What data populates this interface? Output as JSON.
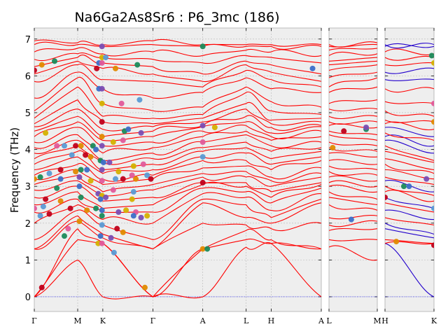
{
  "chart_data": {
    "type": "line",
    "title": "Na6Ga2As8Sr6 : P6_3mc (186)",
    "ylabel": "Frequency (THz)",
    "xlabel": "",
    "ylim": [
      -0.4,
      7.3
    ],
    "yticks": [
      0,
      1,
      2,
      3,
      4,
      5,
      6,
      7
    ],
    "grid": true,
    "colors": {
      "bands": "#ff0000",
      "bands_alt": "#2200cc",
      "zero_line": "#0000ff",
      "panel": "#eeeeee"
    },
    "panels": [
      {
        "labels": [
          "Γ",
          "M",
          "K",
          "Γ",
          "A",
          "L",
          "H",
          "A"
        ],
        "positions": [
          0,
          0.577,
          0.911,
          1.577,
          2.24,
          2.817,
          3.15,
          3.816
        ],
        "color": "red"
      },
      {
        "labels": [
          "L",
          "M"
        ],
        "positions": [
          0,
          0.65
        ],
        "color": "red"
      },
      {
        "labels": [
          "H",
          "K"
        ],
        "positions": [
          0,
          0.65
        ],
        "color": "mixed"
      }
    ],
    "corner_labels": {
      "panel1_right": "A",
      "panel2_left": "L",
      "panel2_right": "M",
      "panel3_left": "H",
      "panel3_right": "K"
    },
    "band_frequencies_at_gamma": [
      0,
      0,
      0,
      1.3,
      1.3,
      1.55,
      2.0,
      2.3,
      2.5,
      2.7,
      2.9,
      3.05,
      3.2,
      3.3,
      3.45,
      3.6,
      3.75,
      3.9,
      4.05,
      4.2,
      4.35,
      4.5,
      4.62,
      4.7,
      4.85,
      5.05,
      5.4,
      5.85,
      6.05,
      6.25,
      6.45,
      6.65,
      6.85,
      6.95
    ],
    "band_frequencies_at_A": [
      0,
      1.3,
      1.3,
      2.0,
      2.55,
      2.65,
      2.8,
      2.95,
      3.05,
      3.1,
      3.25,
      3.35,
      3.5,
      3.7,
      3.8,
      3.95,
      4.05,
      4.2,
      4.35,
      4.5,
      4.62,
      4.65,
      4.75,
      4.85,
      4.95,
      5.15,
      5.55,
      5.7,
      5.85,
      6.05,
      6.35,
      6.55,
      6.8,
      6.85
    ],
    "band_frequencies_at_K": [
      0,
      1.45,
      1.45,
      1.6,
      1.7,
      1.95,
      2.1,
      2.3,
      2.4,
      2.6,
      2.75,
      2.85,
      3.05,
      3.2,
      3.35,
      3.45,
      3.65,
      3.7,
      3.9,
      4.1,
      4.25,
      4.35,
      4.55,
      4.75,
      4.9,
      5.25,
      5.65,
      5.9,
      6.2,
      6.35,
      6.5,
      6.6,
      6.8,
      6.85
    ],
    "band_frequencies_at_M": [
      1.0,
      1.55,
      1.85,
      2.05,
      2.2,
      2.35,
      2.5,
      2.65,
      2.85,
      3.0,
      3.15,
      3.3,
      3.45,
      3.6,
      3.8,
      3.95,
      4.1,
      4.25,
      4.4,
      4.6,
      4.75,
      4.9,
      5.1,
      5.35,
      5.7,
      5.95,
      6.1,
      6.3,
      6.4,
      6.5,
      6.6,
      6.75,
      6.85,
      6.9
    ],
    "band_frequencies_at_L": [
      1.35,
      1.55,
      1.8,
      1.95,
      2.15,
      2.5,
      2.7,
      2.85,
      3.0,
      3.1,
      3.25,
      3.4,
      3.55,
      3.7,
      3.9,
      4.05,
      4.2,
      4.4,
      4.5,
      4.65,
      4.75,
      4.9,
      5.1,
      5.25,
      5.55,
      5.7,
      5.95,
      6.15,
      6.3,
      6.4,
      6.55,
      6.7,
      6.8,
      6.85
    ],
    "band_frequencies_at_H": [
      1.45,
      1.45,
      1.55,
      1.85,
      2.0,
      2.15,
      2.35,
      2.55,
      2.7,
      2.85,
      3.0,
      3.15,
      3.25,
      3.45,
      3.6,
      3.75,
      3.95,
      4.1,
      4.25,
      4.35,
      4.45,
      4.6,
      4.7,
      4.8,
      5.05,
      5.3,
      5.65,
      5.9,
      6.1,
      6.3,
      6.5,
      6.65,
      6.8,
      6.85
    ],
    "marker_colors": [
      "#c0001a",
      "#e08a00",
      "#1a8a5a",
      "#3b6ec8",
      "#7a4db3",
      "#d4b000",
      "#e05a9a",
      "#5a9ad4"
    ],
    "markers": [
      {
        "x": 0.0,
        "y": 6.15
      },
      {
        "x": 0.1,
        "y": 6.3
      },
      {
        "x": 0.27,
        "y": 6.4
      },
      {
        "x": 0.86,
        "y": 6.35
      },
      {
        "x": 0.9,
        "y": 6.8
      },
      {
        "x": 0.9,
        "y": 6.5
      },
      {
        "x": 0.9,
        "y": 6.35
      },
      {
        "x": 0.95,
        "y": 6.5
      },
      {
        "x": 0.83,
        "y": 6.2
      },
      {
        "x": 1.08,
        "y": 6.2
      },
      {
        "x": 1.37,
        "y": 6.3
      },
      {
        "x": 0.86,
        "y": 5.65
      },
      {
        "x": 0.9,
        "y": 5.65
      },
      {
        "x": 0.9,
        "y": 5.25
      },
      {
        "x": 1.16,
        "y": 5.25
      },
      {
        "x": 1.4,
        "y": 5.35
      },
      {
        "x": 0.9,
        "y": 4.75
      },
      {
        "x": 0.9,
        "y": 4.35
      },
      {
        "x": 1.2,
        "y": 4.5
      },
      {
        "x": 1.25,
        "y": 4.55
      },
      {
        "x": 1.42,
        "y": 4.45
      },
      {
        "x": 0.15,
        "y": 4.45
      },
      {
        "x": 0.3,
        "y": 4.1
      },
      {
        "x": 0.4,
        "y": 4.1
      },
      {
        "x": 0.55,
        "y": 4.1
      },
      {
        "x": 0.62,
        "y": 4.1
      },
      {
        "x": 0.78,
        "y": 4.1
      },
      {
        "x": 0.82,
        "y": 4.0
      },
      {
        "x": 0.9,
        "y": 4.1
      },
      {
        "x": 1.05,
        "y": 4.2
      },
      {
        "x": 1.18,
        "y": 4.25
      },
      {
        "x": 0.5,
        "y": 3.85
      },
      {
        "x": 0.68,
        "y": 3.85
      },
      {
        "x": 0.75,
        "y": 3.8
      },
      {
        "x": 0.88,
        "y": 3.7
      },
      {
        "x": 0.92,
        "y": 3.65
      },
      {
        "x": 1.0,
        "y": 3.65
      },
      {
        "x": 1.32,
        "y": 3.55
      },
      {
        "x": 1.45,
        "y": 3.6
      },
      {
        "x": 0.2,
        "y": 3.35
      },
      {
        "x": 0.35,
        "y": 3.45
      },
      {
        "x": 0.55,
        "y": 3.4
      },
      {
        "x": 0.62,
        "y": 3.45
      },
      {
        "x": 0.7,
        "y": 3.45
      },
      {
        "x": 0.9,
        "y": 3.45
      },
      {
        "x": 1.12,
        "y": 3.4
      },
      {
        "x": 1.3,
        "y": 3.3
      },
      {
        "x": 1.5,
        "y": 3.3
      },
      {
        "x": 1.55,
        "y": 3.2
      },
      {
        "x": 0.0,
        "y": 3.2
      },
      {
        "x": 0.08,
        "y": 3.25
      },
      {
        "x": 0.35,
        "y": 3.2
      },
      {
        "x": 0.6,
        "y": 3.25
      },
      {
        "x": 0.75,
        "y": 3.15
      },
      {
        "x": 0.9,
        "y": 3.15
      },
      {
        "x": 1.08,
        "y": 3.2
      },
      {
        "x": 1.18,
        "y": 3.2
      },
      {
        "x": 1.35,
        "y": 3.2
      },
      {
        "x": 0.3,
        "y": 2.95
      },
      {
        "x": 0.6,
        "y": 3.0
      },
      {
        "x": 0.85,
        "y": 2.8
      },
      {
        "x": 0.9,
        "y": 2.75
      },
      {
        "x": 1.05,
        "y": 2.9
      },
      {
        "x": 1.32,
        "y": 2.85
      },
      {
        "x": 0.15,
        "y": 2.65
      },
      {
        "x": 0.35,
        "y": 2.6
      },
      {
        "x": 0.62,
        "y": 2.7
      },
      {
        "x": 0.88,
        "y": 2.65
      },
      {
        "x": 0.95,
        "y": 2.7
      },
      {
        "x": 1.3,
        "y": 2.65
      },
      {
        "x": 0.0,
        "y": 2.4
      },
      {
        "x": 0.12,
        "y": 2.45
      },
      {
        "x": 0.48,
        "y": 2.4
      },
      {
        "x": 0.7,
        "y": 2.35
      },
      {
        "x": 0.82,
        "y": 2.4
      },
      {
        "x": 0.9,
        "y": 2.35
      },
      {
        "x": 1.12,
        "y": 2.3
      },
      {
        "x": 1.22,
        "y": 2.35
      },
      {
        "x": 1.35,
        "y": 2.3
      },
      {
        "x": 0.08,
        "y": 2.2
      },
      {
        "x": 0.2,
        "y": 2.25
      },
      {
        "x": 0.6,
        "y": 2.05
      },
      {
        "x": 0.9,
        "y": 2.2
      },
      {
        "x": 1.32,
        "y": 2.2
      },
      {
        "x": 1.42,
        "y": 2.15
      },
      {
        "x": 1.5,
        "y": 2.2
      },
      {
        "x": 0.45,
        "y": 1.85
      },
      {
        "x": 0.9,
        "y": 1.95
      },
      {
        "x": 1.1,
        "y": 1.85
      },
      {
        "x": 1.18,
        "y": 1.75
      },
      {
        "x": 0.4,
        "y": 1.65
      },
      {
        "x": 0.88,
        "y": 1.65
      },
      {
        "x": 1.02,
        "y": 1.6
      },
      {
        "x": 0.85,
        "y": 1.45
      },
      {
        "x": 0.9,
        "y": 1.45
      },
      {
        "x": 1.06,
        "y": 1.2
      },
      {
        "x": 0.1,
        "y": 0.25
      },
      {
        "x": 1.47,
        "y": 0.25
      },
      {
        "x": 2.24,
        "y": 6.8
      },
      {
        "x": 3.7,
        "y": 6.2
      },
      {
        "x": 2.24,
        "y": 4.65
      },
      {
        "x": 2.4,
        "y": 4.6
      },
      {
        "x": 2.24,
        "y": 4.2
      },
      {
        "x": 2.24,
        "y": 3.8
      },
      {
        "x": 2.24,
        "y": 3.1
      },
      {
        "x": 2.24,
        "y": 1.3
      },
      {
        "x": 2.3,
        "y": 1.3
      }
    ],
    "markers_panel2": [
      {
        "x": 0.2,
        "y": 4.5
      },
      {
        "x": 0.05,
        "y": 4.05
      },
      {
        "x": 0.5,
        "y": 4.55
      },
      {
        "x": 0.3,
        "y": 2.1
      },
      {
        "x": 0.5,
        "y": 4.6
      }
    ],
    "markers_panel3": [
      {
        "x": 0.0,
        "y": 2.7
      },
      {
        "x": 0.15,
        "y": 1.5
      },
      {
        "x": 0.25,
        "y": 3.0
      },
      {
        "x": 0.32,
        "y": 3.0
      },
      {
        "x": 0.55,
        "y": 3.2
      },
      {
        "x": 0.65,
        "y": 6.35
      },
      {
        "x": 0.65,
        "y": 5.25
      },
      {
        "x": 0.65,
        "y": 2.4
      },
      {
        "x": 0.65,
        "y": 1.4
      },
      {
        "x": 0.65,
        "y": 4.75
      },
      {
        "x": 0.62,
        "y": 6.55
      }
    ]
  }
}
